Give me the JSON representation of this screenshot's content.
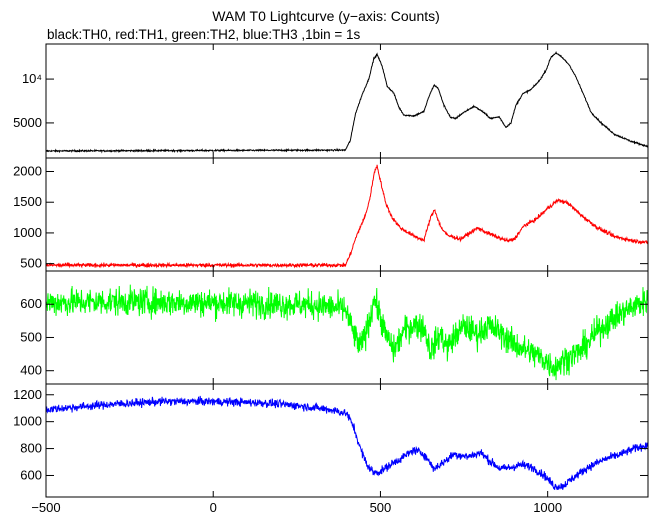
{
  "title": "WAM T0 Lightcurve (y−axis: Counts)",
  "subtitle": "black:TH0, red:TH1, green:TH2, blue:TH3 ,1bin = 1s",
  "chart_data": {
    "type": "line",
    "title": "WAM T0 Lightcurve (y−axis: Counts)",
    "subtitle": "black:TH0, red:TH1, green:TH2, blue:TH3 ,1bin = 1s",
    "xlim": [
      -500,
      1300
    ],
    "x_ticks": [
      -500,
      0,
      500,
      1000
    ],
    "x_tick_labels": [
      "−500",
      "0",
      "500",
      "1000"
    ],
    "bin_size_s": 1,
    "panels": [
      {
        "series_label": "TH0",
        "color": "#000000",
        "ylim": [
          1000,
          14000
        ],
        "y_ticks": [
          5000,
          10000
        ],
        "y_tick_labels": [
          "5000",
          "10⁴"
        ],
        "noise": 60,
        "points": [
          [
            -500,
            1800
          ],
          [
            395,
            1900
          ],
          [
            410,
            3000
          ],
          [
            425,
            6000
          ],
          [
            445,
            8200
          ],
          [
            465,
            10000
          ],
          [
            480,
            12300
          ],
          [
            490,
            12800
          ],
          [
            505,
            11500
          ],
          [
            520,
            9200
          ],
          [
            540,
            8400
          ],
          [
            555,
            6800
          ],
          [
            570,
            5900
          ],
          [
            600,
            5800
          ],
          [
            630,
            6300
          ],
          [
            645,
            8000
          ],
          [
            660,
            9300
          ],
          [
            672,
            9000
          ],
          [
            690,
            7000
          ],
          [
            710,
            5600
          ],
          [
            725,
            5500
          ],
          [
            745,
            6100
          ],
          [
            780,
            6900
          ],
          [
            805,
            6300
          ],
          [
            830,
            5500
          ],
          [
            855,
            5700
          ],
          [
            875,
            4500
          ],
          [
            890,
            5000
          ],
          [
            905,
            7000
          ],
          [
            925,
            8300
          ],
          [
            950,
            8800
          ],
          [
            975,
            9800
          ],
          [
            995,
            11000
          ],
          [
            1010,
            12500
          ],
          [
            1025,
            13000
          ],
          [
            1045,
            12400
          ],
          [
            1065,
            11600
          ],
          [
            1085,
            10200
          ],
          [
            1110,
            8000
          ],
          [
            1130,
            6200
          ],
          [
            1160,
            5000
          ],
          [
            1200,
            3700
          ],
          [
            1250,
            2900
          ],
          [
            1300,
            2300
          ]
        ]
      },
      {
        "series_label": "TH1",
        "color": "#ff0000",
        "ylim": [
          380,
          2220
        ],
        "y_ticks": [
          500,
          1000,
          1500,
          2000
        ],
        "y_tick_labels": [
          "500",
          "1000",
          "1500",
          "2000"
        ],
        "noise": 22,
        "points": [
          [
            -500,
            475
          ],
          [
            395,
            475
          ],
          [
            410,
            650
          ],
          [
            425,
            900
          ],
          [
            440,
            1100
          ],
          [
            455,
            1280
          ],
          [
            470,
            1600
          ],
          [
            480,
            1950
          ],
          [
            490,
            2100
          ],
          [
            500,
            1850
          ],
          [
            515,
            1500
          ],
          [
            535,
            1250
          ],
          [
            560,
            1080
          ],
          [
            600,
            950
          ],
          [
            630,
            880
          ],
          [
            650,
            1250
          ],
          [
            662,
            1380
          ],
          [
            680,
            1100
          ],
          [
            700,
            960
          ],
          [
            740,
            900
          ],
          [
            790,
            1080
          ],
          [
            820,
            1000
          ],
          [
            850,
            930
          ],
          [
            880,
            870
          ],
          [
            900,
            900
          ],
          [
            930,
            1120
          ],
          [
            965,
            1220
          ],
          [
            1000,
            1400
          ],
          [
            1030,
            1530
          ],
          [
            1060,
            1490
          ],
          [
            1100,
            1290
          ],
          [
            1150,
            1080
          ],
          [
            1200,
            940
          ],
          [
            1250,
            880
          ],
          [
            1300,
            840
          ]
        ]
      },
      {
        "series_label": "TH2",
        "color": "#00ff00",
        "ylim": [
          360,
          700
        ],
        "y_ticks": [
          400,
          500,
          600
        ],
        "y_tick_labels": [
          "400",
          "500",
          "600"
        ],
        "noise": 30,
        "points": [
          [
            -500,
            605
          ],
          [
            -300,
            608
          ],
          [
            -100,
            606
          ],
          [
            100,
            603
          ],
          [
            300,
            598
          ],
          [
            395,
            585
          ],
          [
            420,
            510
          ],
          [
            440,
            470
          ],
          [
            455,
            510
          ],
          [
            470,
            560
          ],
          [
            480,
            620
          ],
          [
            495,
            580
          ],
          [
            515,
            510
          ],
          [
            540,
            460
          ],
          [
            570,
            520
          ],
          [
            600,
            540
          ],
          [
            630,
            530
          ],
          [
            650,
            460
          ],
          [
            680,
            510
          ],
          [
            700,
            470
          ],
          [
            720,
            500
          ],
          [
            750,
            535
          ],
          [
            790,
            510
          ],
          [
            820,
            535
          ],
          [
            850,
            520
          ],
          [
            875,
            500
          ],
          [
            900,
            480
          ],
          [
            940,
            460
          ],
          [
            980,
            440
          ],
          [
            1020,
            410
          ],
          [
            1060,
            440
          ],
          [
            1100,
            460
          ],
          [
            1150,
            520
          ],
          [
            1200,
            560
          ],
          [
            1250,
            590
          ],
          [
            1300,
            615
          ]
        ]
      },
      {
        "series_label": "TH3",
        "color": "#0000ff",
        "ylim": [
          440,
          1280
        ],
        "y_ticks": [
          600,
          800,
          1000,
          1200
        ],
        "y_tick_labels": [
          "600",
          "800",
          "1000",
          "1200"
        ],
        "noise": 22,
        "points": [
          [
            -500,
            1090
          ],
          [
            -400,
            1110
          ],
          [
            -300,
            1130
          ],
          [
            -150,
            1150
          ],
          [
            0,
            1150
          ],
          [
            150,
            1140
          ],
          [
            250,
            1120
          ],
          [
            350,
            1090
          ],
          [
            400,
            1060
          ],
          [
            420,
            960
          ],
          [
            440,
            800
          ],
          [
            460,
            680
          ],
          [
            480,
            620
          ],
          [
            500,
            630
          ],
          [
            530,
            680
          ],
          [
            570,
            740
          ],
          [
            600,
            790
          ],
          [
            630,
            760
          ],
          [
            660,
            650
          ],
          [
            690,
            700
          ],
          [
            720,
            760
          ],
          [
            760,
            740
          ],
          [
            800,
            770
          ],
          [
            830,
            700
          ],
          [
            860,
            650
          ],
          [
            890,
            660
          ],
          [
            920,
            680
          ],
          [
            955,
            660
          ],
          [
            990,
            600
          ],
          [
            1020,
            520
          ],
          [
            1045,
            520
          ],
          [
            1075,
            580
          ],
          [
            1120,
            660
          ],
          [
            1170,
            720
          ],
          [
            1220,
            760
          ],
          [
            1260,
            800
          ],
          [
            1300,
            830
          ]
        ]
      }
    ]
  }
}
